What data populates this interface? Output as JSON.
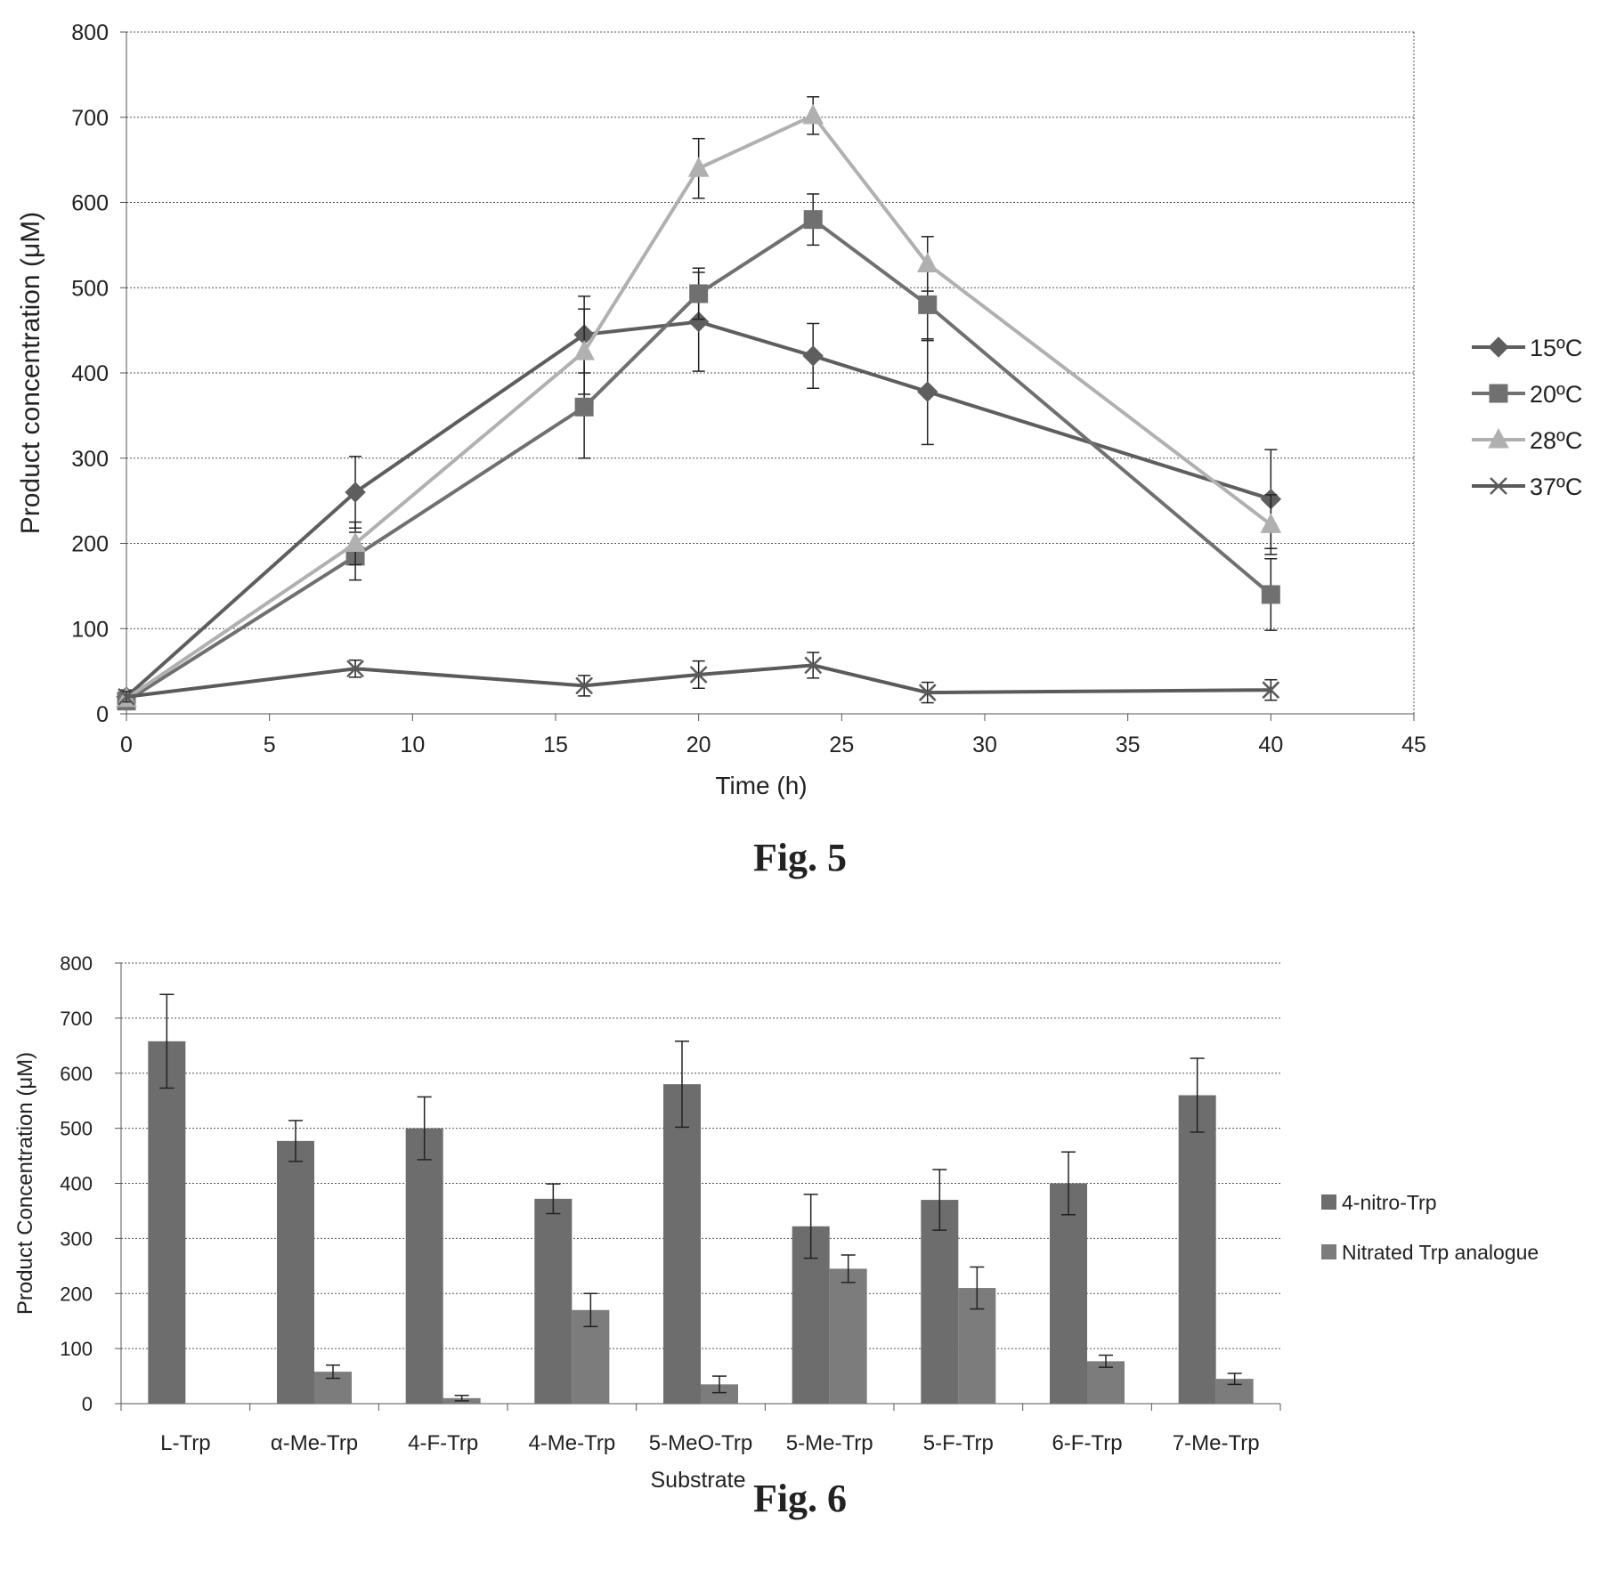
{
  "figures": [
    {
      "caption": "Fig. 5",
      "chart_data": {
        "type": "line",
        "title": "",
        "xlabel": "Time (h)",
        "ylabel": "Product concentration (μM)",
        "xlim": [
          0,
          45
        ],
        "ylim": [
          0,
          800
        ],
        "xticks": [
          0,
          5,
          10,
          15,
          20,
          25,
          30,
          35,
          40,
          45
        ],
        "yticks": [
          0,
          100,
          200,
          300,
          400,
          500,
          600,
          700,
          800
        ],
        "grid": "horizontal",
        "legend_position": "right",
        "series": [
          {
            "name": "15ºC",
            "marker": "diamond",
            "color": "#5e5e5e",
            "x": [
              0,
              8,
              16,
              20,
              24,
              28,
              40
            ],
            "y": [
              20,
              260,
              445,
              460,
              420,
              378,
              252
            ],
            "err": [
              8,
              42,
              45,
              58,
              38,
              62,
              58
            ]
          },
          {
            "name": "20ºC",
            "marker": "square",
            "color": "#707070",
            "x": [
              0,
              8,
              16,
              20,
              24,
              28,
              40
            ],
            "y": [
              15,
              185,
              360,
              493,
              580,
              480,
              140
            ],
            "err": [
              8,
              28,
              60,
              30,
              30,
              42,
              42
            ]
          },
          {
            "name": "28ºC",
            "marker": "triangle",
            "color": "#b0b0b0",
            "x": [
              0,
              8,
              16,
              20,
              24,
              28,
              40
            ],
            "y": [
              18,
              200,
              425,
              640,
              702,
              528,
              222
            ],
            "err": [
              8,
              25,
              50,
              35,
              22,
              32,
              35
            ]
          },
          {
            "name": "37ºC",
            "marker": "x",
            "color": "#5a5a5a",
            "x": [
              0,
              8,
              16,
              20,
              24,
              28,
              40
            ],
            "y": [
              20,
              53,
              33,
              46,
              57,
              25,
              28
            ],
            "err": [
              6,
              10,
              12,
              16,
              15,
              12,
              12
            ]
          }
        ]
      }
    },
    {
      "caption": "Fig. 6",
      "chart_data": {
        "type": "bar",
        "title": "",
        "xlabel": "Substrate",
        "ylabel": "Product Concentration (μM)",
        "ylim": [
          0,
          800
        ],
        "yticks": [
          0,
          100,
          200,
          300,
          400,
          500,
          600,
          700,
          800
        ],
        "grid": "horizontal",
        "legend_position": "right",
        "categories": [
          "L-Trp",
          "α-Me-Trp",
          "4-F-Trp",
          "4-Me-Trp",
          "5-MeO-Trp",
          "5-Me-Trp",
          "5-F-Trp",
          "6-F-Trp",
          "7-Me-Trp"
        ],
        "series": [
          {
            "name": "4-nitro-Trp",
            "color": "#6d6d6d",
            "values": [
              658,
              477,
              500,
              372,
              580,
              322,
              370,
              400,
              560
            ],
            "err": [
              85,
              37,
              57,
              27,
              78,
              58,
              55,
              57,
              67
            ]
          },
          {
            "name": "Nitrated Trp analogue",
            "color": "#7c7c7c",
            "values": [
              null,
              58,
              10,
              170,
              35,
              245,
              210,
              77,
              45
            ],
            "err": [
              null,
              12,
              5,
              30,
              15,
              25,
              38,
              11,
              10
            ]
          }
        ]
      }
    }
  ]
}
